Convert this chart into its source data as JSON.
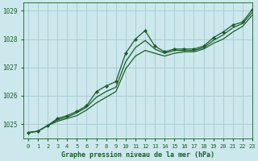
{
  "title": "Graphe pression niveau de la mer (hPa)",
  "bg_color": "#cce8ec",
  "grid_color": "#aacdd4",
  "line_color": "#1a5c2a",
  "xlim": [
    -0.5,
    23
  ],
  "ylim": [
    1024.5,
    1029.3
  ],
  "yticks": [
    1025,
    1026,
    1027,
    1028,
    1029
  ],
  "xticks": [
    0,
    1,
    2,
    3,
    4,
    5,
    6,
    7,
    8,
    9,
    10,
    11,
    12,
    13,
    14,
    15,
    16,
    17,
    18,
    19,
    20,
    21,
    22,
    23
  ],
  "series": [
    [
      1024.7,
      1024.75,
      1024.95,
      1025.2,
      1025.3,
      1025.45,
      1025.65,
      1026.15,
      1026.35,
      1026.5,
      1027.5,
      1028.0,
      1028.3,
      1027.75,
      1027.55,
      1027.65,
      1027.65,
      1027.65,
      1027.75,
      1028.05,
      1028.25,
      1028.5,
      1028.6,
      1029.05
    ],
    [
      1024.7,
      1024.75,
      1024.95,
      1025.15,
      1025.25,
      1025.4,
      1025.6,
      1025.95,
      1026.15,
      1026.3,
      1027.2,
      1027.7,
      1027.95,
      1027.65,
      1027.5,
      1027.6,
      1027.6,
      1027.6,
      1027.7,
      1027.95,
      1028.15,
      1028.4,
      1028.55,
      1028.95
    ],
    [
      1024.7,
      1024.75,
      1024.95,
      1025.1,
      1025.2,
      1025.3,
      1025.5,
      1025.75,
      1025.95,
      1026.15,
      1026.95,
      1027.4,
      1027.6,
      1027.5,
      1027.4,
      1027.5,
      1027.55,
      1027.55,
      1027.65,
      1027.85,
      1028.0,
      1028.25,
      1028.45,
      1028.85
    ]
  ]
}
